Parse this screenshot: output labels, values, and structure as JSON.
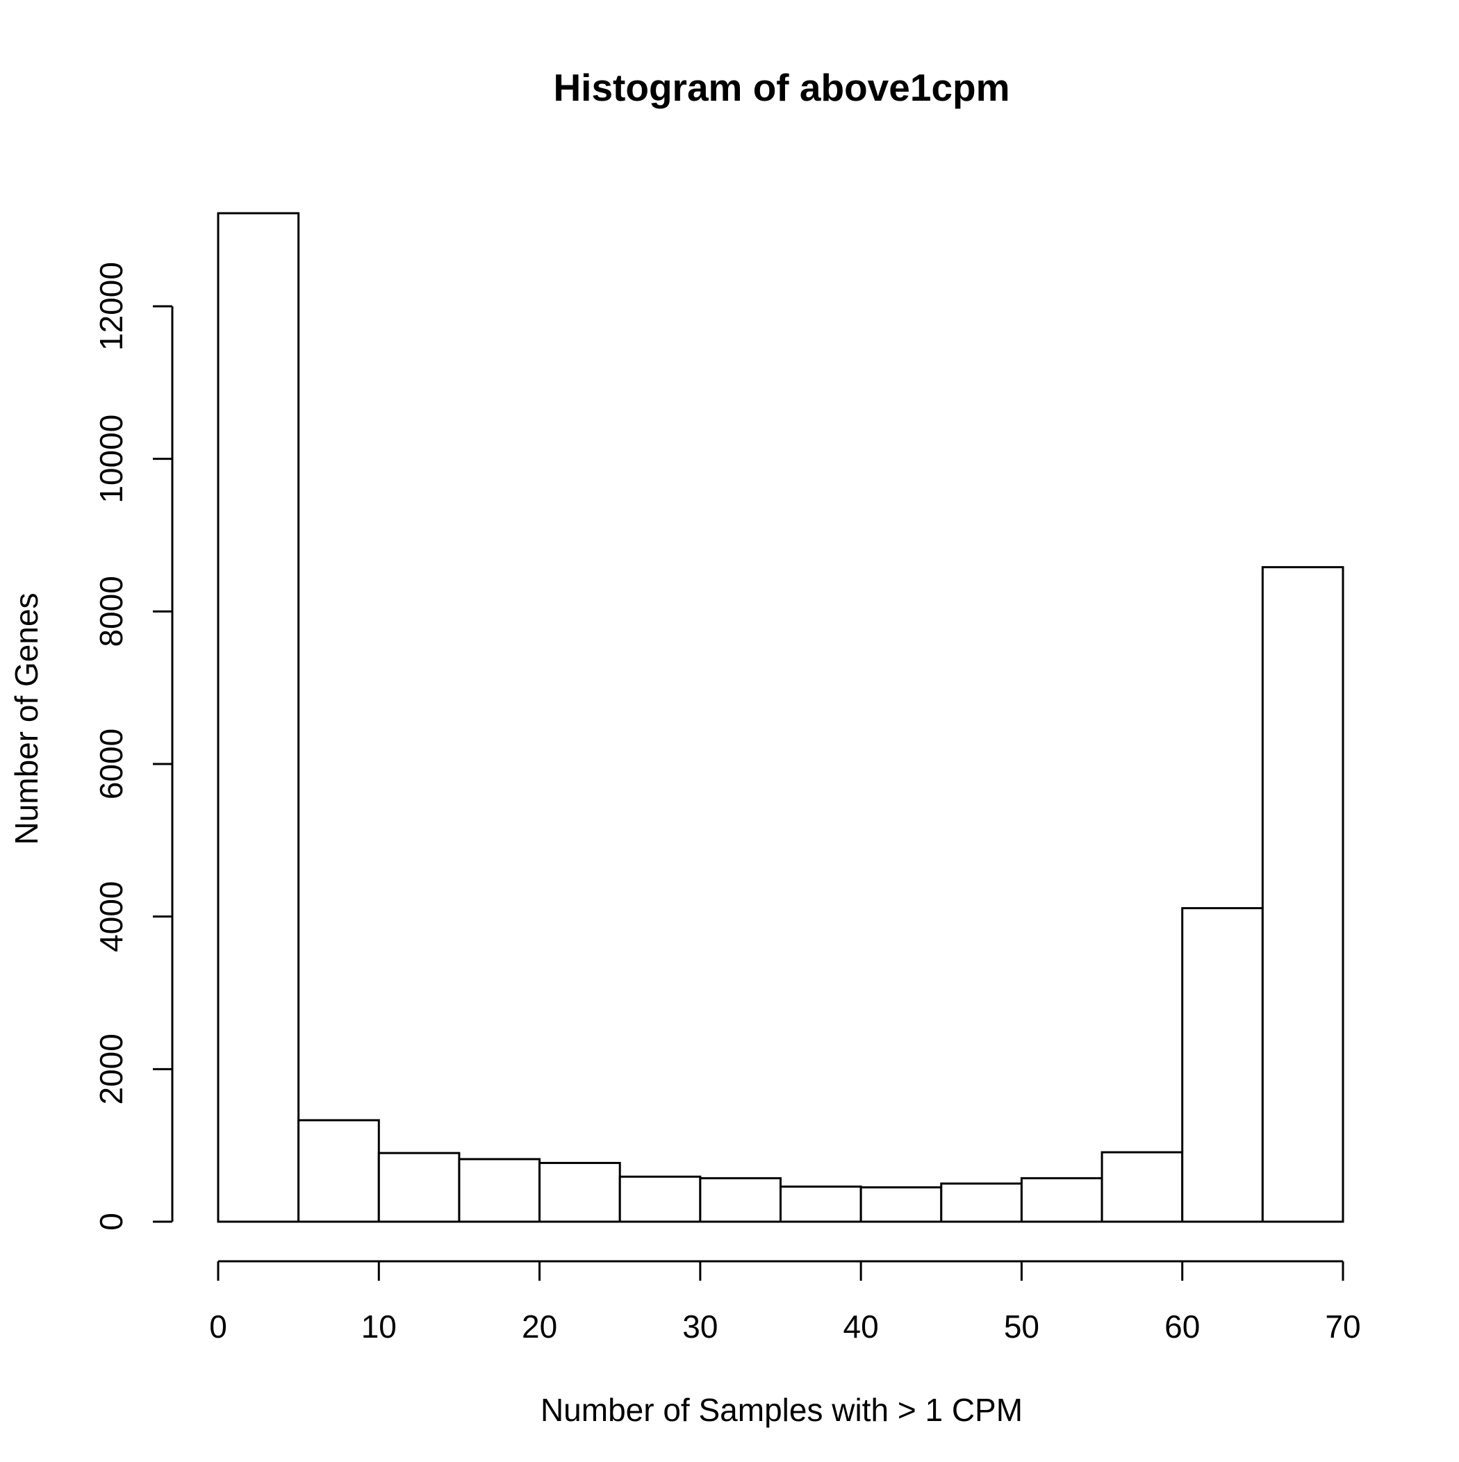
{
  "chart_data": {
    "type": "bar",
    "title": "Histogram of above1cpm",
    "xlabel": "Number of Samples with > 1 CPM",
    "ylabel": "Number of Genes",
    "bins": [
      {
        "start": 0,
        "end": 5,
        "count": 13220
      },
      {
        "start": 5,
        "end": 10,
        "count": 1330
      },
      {
        "start": 10,
        "end": 15,
        "count": 900
      },
      {
        "start": 15,
        "end": 20,
        "count": 820
      },
      {
        "start": 20,
        "end": 25,
        "count": 770
      },
      {
        "start": 25,
        "end": 30,
        "count": 590
      },
      {
        "start": 30,
        "end": 35,
        "count": 570
      },
      {
        "start": 35,
        "end": 40,
        "count": 460
      },
      {
        "start": 40,
        "end": 45,
        "count": 450
      },
      {
        "start": 45,
        "end": 50,
        "count": 500
      },
      {
        "start": 50,
        "end": 55,
        "count": 570
      },
      {
        "start": 55,
        "end": 60,
        "count": 910
      },
      {
        "start": 60,
        "end": 65,
        "count": 4110
      },
      {
        "start": 65,
        "end": 70,
        "count": 8580
      }
    ],
    "xlim": [
      0,
      70
    ],
    "ylim": [
      0,
      13220
    ],
    "xticks": [
      0,
      10,
      20,
      30,
      40,
      50,
      60,
      70
    ],
    "yticks": [
      0,
      2000,
      4000,
      6000,
      8000,
      10000,
      12000
    ],
    "xtick_labels": [
      "0",
      "10",
      "20",
      "30",
      "40",
      "50",
      "60",
      "70"
    ],
    "ytick_labels": [
      "0",
      "2000",
      "4000",
      "6000",
      "8000",
      "10000",
      "12000"
    ],
    "grid": false,
    "legend": "none"
  }
}
